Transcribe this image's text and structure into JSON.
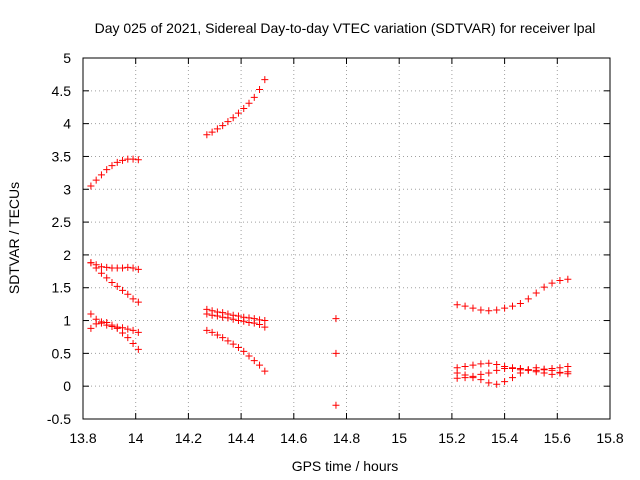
{
  "chart_data": {
    "type": "scatter",
    "title": "Day 025 of 2021, Sidereal Day-to-day VTEC variation (SDTVAR) for receiver lpal",
    "xlabel": "GPS time / hours",
    "ylabel": "SDTVAR / TECUs",
    "xlim": [
      13.8,
      15.8
    ],
    "ylim": [
      -0.5,
      5
    ],
    "xticks": [
      "13.8",
      "14",
      "14.2",
      "14.4",
      "14.6",
      "14.8",
      "15",
      "15.2",
      "15.4",
      "15.6",
      "15.8"
    ],
    "yticks": [
      "-0.5",
      "0",
      "0.5",
      "1",
      "1.5",
      "2",
      "2.5",
      "3",
      "3.5",
      "4",
      "4.5",
      "5"
    ],
    "grid": true,
    "marker": "+",
    "marker_color": "#ff0000",
    "series": [
      {
        "name": "s1",
        "x": [
          13.83,
          13.85,
          13.87,
          13.89,
          13.91,
          13.93,
          13.95,
          13.97,
          13.99,
          14.01
        ],
        "y": [
          3.05,
          3.14,
          3.22,
          3.3,
          3.36,
          3.41,
          3.44,
          3.46,
          3.46,
          3.45
        ]
      },
      {
        "name": "s2",
        "x": [
          13.83,
          13.85,
          13.87,
          13.89,
          13.91,
          13.93,
          13.95,
          13.97,
          13.99,
          14.01
        ],
        "y": [
          1.88,
          1.85,
          1.82,
          1.81,
          1.8,
          1.8,
          1.8,
          1.81,
          1.8,
          1.78
        ]
      },
      {
        "name": "s3",
        "x": [
          13.83,
          13.85,
          13.87,
          13.89,
          13.91,
          13.93,
          13.95,
          13.97,
          13.99,
          14.01
        ],
        "y": [
          1.88,
          1.8,
          1.72,
          1.65,
          1.58,
          1.52,
          1.46,
          1.4,
          1.33,
          1.28
        ]
      },
      {
        "name": "s4",
        "x": [
          13.83,
          13.85,
          13.87,
          13.89,
          13.91,
          13.93,
          13.95,
          13.97,
          13.99,
          14.01
        ],
        "y": [
          1.1,
          1.02,
          0.96,
          0.93,
          0.91,
          0.9,
          0.89,
          0.87,
          0.85,
          0.82
        ]
      },
      {
        "name": "s5",
        "x": [
          13.83,
          13.85,
          13.87,
          13.89,
          13.91,
          13.93,
          13.95,
          13.97,
          13.99,
          14.01
        ],
        "y": [
          0.88,
          0.95,
          0.98,
          0.97,
          0.93,
          0.88,
          0.81,
          0.74,
          0.65,
          0.56
        ]
      },
      {
        "name": "s6",
        "x": [
          14.27,
          14.29,
          14.31,
          14.33,
          14.35,
          14.37,
          14.39,
          14.41,
          14.43,
          14.45,
          14.47,
          14.49
        ],
        "y": [
          3.83,
          3.87,
          3.92,
          3.97,
          4.03,
          4.09,
          4.16,
          4.23,
          4.31,
          4.4,
          4.52,
          4.67
        ]
      },
      {
        "name": "s7",
        "x": [
          14.27,
          14.29,
          14.31,
          14.33,
          14.35,
          14.37,
          14.39,
          14.41,
          14.43,
          14.45,
          14.47,
          14.49
        ],
        "y": [
          1.17,
          1.15,
          1.13,
          1.12,
          1.1,
          1.08,
          1.07,
          1.05,
          1.04,
          1.03,
          1.01,
          1.0
        ]
      },
      {
        "name": "s8",
        "x": [
          14.27,
          14.29,
          14.31,
          14.33,
          14.35,
          14.37,
          14.39,
          14.41,
          14.43,
          14.45,
          14.47,
          14.49
        ],
        "y": [
          1.1,
          1.08,
          1.07,
          1.05,
          1.04,
          1.02,
          1.0,
          0.99,
          0.97,
          0.96,
          0.94,
          0.9
        ]
      },
      {
        "name": "s9",
        "x": [
          14.27,
          14.29,
          14.31,
          14.33,
          14.35,
          14.37,
          14.39,
          14.41,
          14.43,
          14.45,
          14.47,
          14.49
        ],
        "y": [
          0.85,
          0.82,
          0.78,
          0.74,
          0.69,
          0.64,
          0.59,
          0.53,
          0.46,
          0.39,
          0.32,
          0.23
        ]
      },
      {
        "name": "s10",
        "x": [
          14.76,
          14.76,
          14.76
        ],
        "y": [
          1.03,
          0.5,
          -0.29
        ]
      },
      {
        "name": "s11",
        "x": [
          15.22,
          15.25,
          15.28,
          15.31,
          15.34,
          15.37,
          15.4,
          15.43,
          15.46,
          15.49,
          15.52,
          15.55,
          15.58,
          15.61,
          15.64
        ],
        "y": [
          1.24,
          1.22,
          1.19,
          1.16,
          1.15,
          1.16,
          1.19,
          1.22,
          1.26,
          1.33,
          1.42,
          1.51,
          1.57,
          1.61,
          1.63
        ]
      },
      {
        "name": "s12",
        "x": [
          15.22,
          15.25,
          15.28,
          15.31,
          15.34,
          15.37,
          15.4,
          15.43,
          15.46,
          15.49,
          15.52,
          15.55,
          15.58,
          15.61,
          15.64
        ],
        "y": [
          0.28,
          0.3,
          0.32,
          0.34,
          0.35,
          0.33,
          0.3,
          0.27,
          0.25,
          0.24,
          0.24,
          0.25,
          0.27,
          0.28,
          0.3
        ]
      },
      {
        "name": "s13",
        "x": [
          15.22,
          15.25,
          15.28,
          15.31,
          15.34,
          15.37,
          15.4,
          15.43,
          15.46,
          15.49,
          15.52,
          15.55,
          15.58,
          15.61,
          15.64
        ],
        "y": [
          0.2,
          0.17,
          0.13,
          0.1,
          0.05,
          0.03,
          0.07,
          0.13,
          0.2,
          0.25,
          0.28,
          0.26,
          0.24,
          0.21,
          0.19
        ]
      },
      {
        "name": "s14",
        "x": [
          15.22,
          15.25,
          15.28,
          15.31,
          15.34,
          15.37,
          15.4,
          15.43,
          15.46,
          15.49,
          15.52,
          15.55,
          15.58,
          15.61,
          15.64
        ],
        "y": [
          0.12,
          0.13,
          0.15,
          0.18,
          0.2,
          0.24,
          0.27,
          0.28,
          0.27,
          0.25,
          0.22,
          0.2,
          0.18,
          0.2,
          0.22
        ]
      }
    ]
  }
}
